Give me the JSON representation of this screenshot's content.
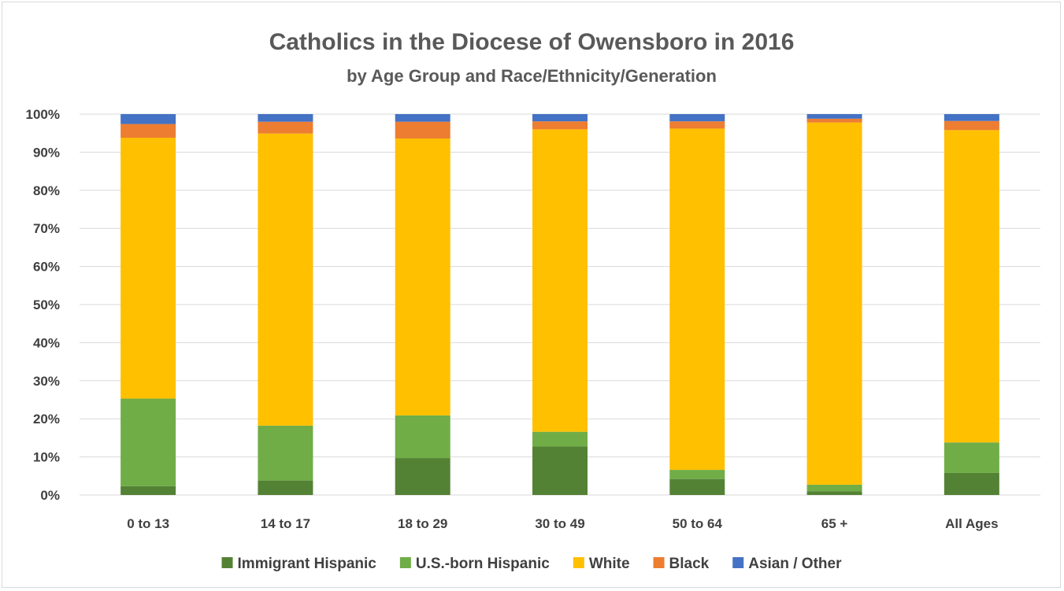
{
  "chart_data": {
    "type": "bar",
    "stacked": true,
    "percent_stacked": true,
    "title": "Catholics in the Diocese of Owensboro in 2016",
    "subtitle": "by Age Group and Race/Ethnicity/Generation",
    "xlabel": "",
    "ylabel": "",
    "ylim": [
      0,
      100
    ],
    "y_ticks": [
      "0%",
      "10%",
      "20%",
      "30%",
      "40%",
      "50%",
      "60%",
      "70%",
      "80%",
      "90%",
      "100%"
    ],
    "grid": true,
    "legend_position": "bottom",
    "categories": [
      "0 to 13",
      "14 to 17",
      "18 to 29",
      "30 to 49",
      "50 to 64",
      "65 +",
      "All Ages"
    ],
    "series": [
      {
        "name": "Immigrant Hispanic",
        "color": "#548235",
        "values": [
          2.3,
          3.8,
          9.7,
          12.7,
          4.2,
          1.0,
          5.8
        ]
      },
      {
        "name": "U.S.-born Hispanic",
        "color": "#70ad47",
        "values": [
          23.0,
          14.4,
          11.2,
          3.9,
          2.4,
          1.7,
          8.0
        ]
      },
      {
        "name": "White",
        "color": "#ffc000",
        "values": [
          68.5,
          76.7,
          72.7,
          79.4,
          89.6,
          95.1,
          82.0
        ]
      },
      {
        "name": "Black",
        "color": "#ed7d31",
        "values": [
          3.6,
          3.1,
          4.4,
          2.1,
          1.9,
          1.0,
          2.4
        ]
      },
      {
        "name": "Asian / Other",
        "color": "#4472c4",
        "values": [
          2.6,
          2.0,
          2.0,
          1.9,
          1.9,
          1.2,
          1.8
        ]
      }
    ]
  }
}
